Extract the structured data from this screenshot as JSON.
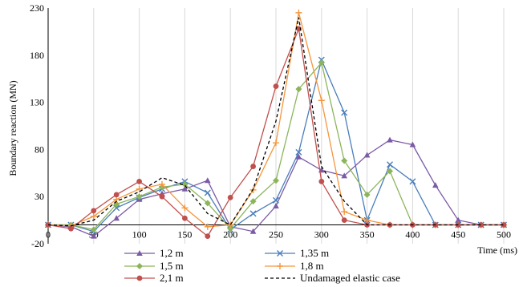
{
  "chart_data": {
    "type": "line",
    "xlabel": "Time (ms)",
    "ylabel": "Boundary reaction (MN)",
    "xlim": [
      0,
      500
    ],
    "ylim": [
      -20,
      230
    ],
    "xticks": [
      0,
      50,
      100,
      150,
      200,
      250,
      300,
      350,
      400,
      450,
      500
    ],
    "yticks": [
      -20,
      30,
      80,
      130,
      180,
      230
    ],
    "grid": "vertical",
    "legend_position": "bottom",
    "series": [
      {
        "name": "1,2 m",
        "color": "#7b5aa6",
        "marker": "triangle",
        "dash": "",
        "x": [
          0,
          25,
          50,
          75,
          100,
          125,
          150,
          175,
          200,
          225,
          250,
          275,
          300,
          325,
          350,
          375,
          400,
          425,
          450,
          475,
          500
        ],
        "y": [
          0,
          -2,
          -12,
          7,
          27,
          33,
          38,
          47,
          -2,
          -7,
          20,
          72,
          58,
          52,
          74,
          90,
          85,
          42,
          5,
          0,
          0
        ]
      },
      {
        "name": "1,35 m",
        "color": "#4a7ebb",
        "marker": "x",
        "dash": "",
        "x": [
          0,
          25,
          50,
          75,
          100,
          125,
          150,
          175,
          200,
          225,
          250,
          275,
          300,
          325,
          350,
          375,
          400,
          425,
          450,
          475,
          500
        ],
        "y": [
          0,
          0,
          -7,
          18,
          29,
          38,
          46,
          34,
          -5,
          12,
          26,
          77,
          175,
          119,
          5,
          64,
          46,
          0,
          0,
          0,
          0
        ]
      },
      {
        "name": "1,5 m",
        "color": "#8cb55b",
        "marker": "diamond",
        "dash": "",
        "x": [
          0,
          25,
          50,
          75,
          100,
          125,
          150,
          175,
          200,
          225,
          250,
          275,
          300,
          325,
          350,
          375,
          400,
          425,
          450,
          475,
          500
        ],
        "y": [
          0,
          0,
          -5,
          22,
          30,
          40,
          43,
          23,
          -4,
          25,
          47,
          144,
          172,
          68,
          32,
          57,
          0,
          0,
          0,
          0,
          0
        ]
      },
      {
        "name": "1,8 m",
        "color": "#f5963d",
        "marker": "plus",
        "dash": "",
        "x": [
          0,
          25,
          50,
          75,
          100,
          125,
          150,
          175,
          200,
          225,
          250,
          275,
          300,
          325,
          350,
          375,
          400,
          425,
          450,
          475,
          500
        ],
        "y": [
          0,
          -1,
          9,
          27,
          38,
          43,
          18,
          -2,
          0,
          37,
          87,
          225,
          132,
          14,
          5,
          0,
          0,
          0,
          0,
          0,
          0
        ]
      },
      {
        "name": "2,1 m",
        "color": "#c0504d",
        "marker": "circle",
        "dash": "",
        "x": [
          0,
          25,
          50,
          75,
          100,
          125,
          150,
          175,
          200,
          225,
          250,
          275,
          300,
          325,
          350,
          375,
          400,
          425,
          450,
          475,
          500
        ],
        "y": [
          0,
          -4,
          15,
          32,
          46,
          30,
          7,
          -12,
          29,
          62,
          147,
          208,
          46,
          5,
          0,
          0,
          0,
          0,
          0,
          0,
          0
        ]
      },
      {
        "name": "Undamaged elastic case",
        "color": "#000000",
        "marker": "none",
        "dash": "4,3",
        "x": [
          0,
          25,
          50,
          75,
          100,
          125,
          150,
          175,
          200,
          225,
          250,
          275,
          300,
          325,
          350,
          375,
          400,
          425,
          450,
          475,
          500
        ],
        "y": [
          0,
          -1,
          5,
          25,
          35,
          50,
          42,
          12,
          0,
          38,
          110,
          220,
          62,
          25,
          0,
          0,
          0,
          0,
          0,
          0,
          0
        ]
      }
    ]
  }
}
